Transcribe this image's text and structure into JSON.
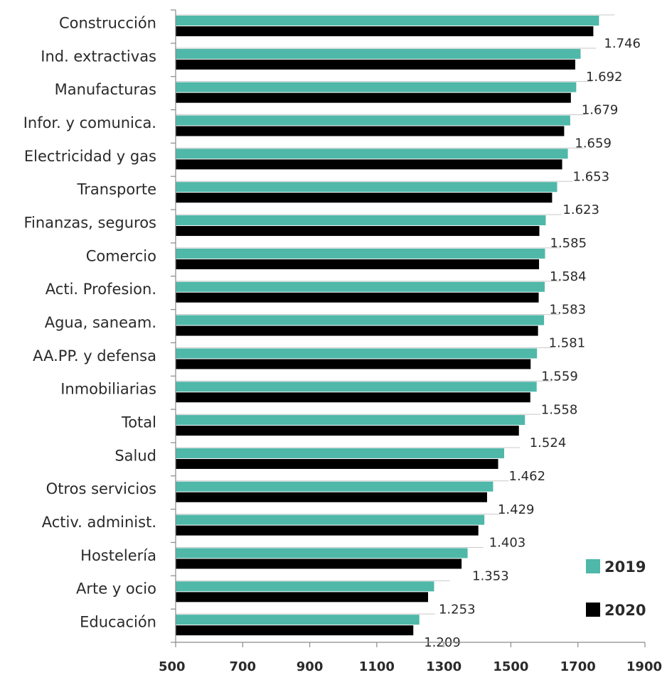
{
  "chart_data": {
    "type": "bar",
    "orientation": "horizontal",
    "categories": [
      "Construcción",
      "Ind. extractivas",
      "Manufacturas",
      "Infor. y comunica.",
      "Electricidad y gas",
      "Transporte",
      "Finanzas, seguros",
      "Comercio",
      "Acti. Profesion.",
      "Agua, saneam.",
      "AA.PP. y defensa",
      "Inmobiliarias",
      "Total",
      "Salud",
      "Otros servicios",
      "Activ. administ.",
      "Hostelería",
      "Arte y ocio",
      "Educación"
    ],
    "series": [
      {
        "name": "2019",
        "color": "#4fb8a8",
        "values": [
          1763,
          1708,
          1695,
          1677,
          1670,
          1638,
          1604,
          1602,
          1601,
          1599,
          1578,
          1577,
          1542,
          1480,
          1447,
          1421,
          1371,
          1271,
          1227
        ]
      },
      {
        "name": "2020",
        "color": "#000000",
        "values": [
          1746,
          1692,
          1679,
          1659,
          1653,
          1623,
          1585,
          1584,
          1583,
          1581,
          1559,
          1558,
          1524,
          1462,
          1429,
          1403,
          1353,
          1253,
          1209
        ]
      }
    ],
    "data_labels": [
      "1.746",
      "1.692",
      "1.679",
      "1.659",
      "1.653",
      "1.623",
      "1.585",
      "1.584",
      "1.583",
      "1.581",
      "1.559",
      "1.558",
      "1.524",
      "1.462",
      "1.429",
      "1.403",
      "1.353",
      "1.253",
      "1.209"
    ],
    "x_ticks": [
      "500",
      "700",
      "900",
      "1100",
      "1300",
      "1500",
      "1700",
      "1900"
    ],
    "xlim": [
      500,
      1900
    ],
    "title": "",
    "xlabel": "",
    "ylabel": "",
    "grid": false,
    "legend_position": "bottom-right"
  }
}
